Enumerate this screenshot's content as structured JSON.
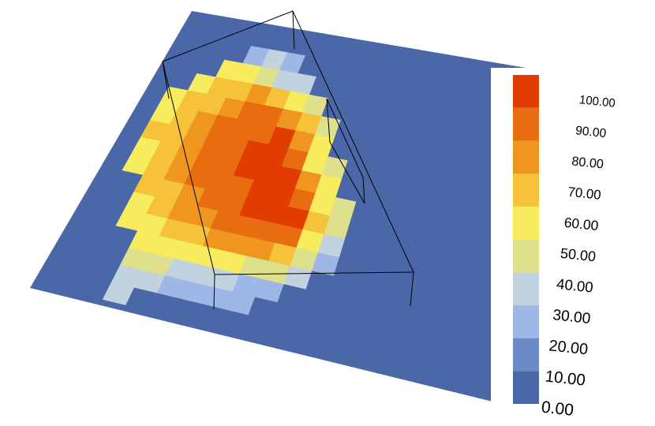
{
  "chart_data": {
    "type": "heatmap",
    "z": [
      [
        0,
        0,
        0,
        25,
        30,
        25,
        0,
        0,
        0,
        0,
        0,
        0
      ],
      [
        0,
        0,
        55,
        55,
        45,
        35,
        30,
        0,
        0,
        0,
        0,
        0
      ],
      [
        0,
        58,
        62,
        68,
        70,
        65,
        50,
        40,
        0,
        0,
        0,
        0
      ],
      [
        55,
        60,
        68,
        75,
        80,
        82,
        78,
        60,
        45,
        0,
        0,
        0
      ],
      [
        58,
        65,
        72,
        80,
        86,
        88,
        90,
        70,
        55,
        0,
        0,
        0
      ],
      [
        60,
        66,
        75,
        83,
        88,
        90,
        92,
        82,
        58,
        45,
        0,
        0
      ],
      [
        58,
        65,
        74,
        82,
        87,
        90,
        93,
        92,
        70,
        52,
        0,
        0
      ],
      [
        55,
        63,
        72,
        80,
        85,
        88,
        92,
        95,
        85,
        58,
        40,
        0
      ],
      [
        0,
        60,
        68,
        76,
        82,
        86,
        90,
        94,
        92,
        62,
        45,
        0
      ],
      [
        0,
        55,
        62,
        70,
        76,
        80,
        84,
        88,
        80,
        58,
        35,
        0
      ],
      [
        0,
        50,
        58,
        64,
        68,
        72,
        74,
        70,
        62,
        45,
        25,
        0
      ],
      [
        0,
        0,
        52,
        56,
        58,
        55,
        52,
        48,
        40,
        30,
        0,
        0
      ],
      [
        0,
        0,
        45,
        42,
        38,
        35,
        30,
        28,
        25,
        0,
        0,
        0
      ],
      [
        0,
        0,
        35,
        30,
        28,
        25,
        22,
        20,
        0,
        0,
        0,
        0
      ],
      [
        0,
        0,
        30,
        0,
        0,
        0,
        0,
        0,
        0,
        0,
        0,
        0
      ]
    ],
    "colorbar": {
      "colors": [
        "#4a67a8",
        "#6a8bc8",
        "#9db8e6",
        "#c2d2de",
        "#dfe08c",
        "#f7ec5e",
        "#f5c239",
        "#ef9620",
        "#e76d10",
        "#e13d00"
      ],
      "ticks": [
        {
          "value": 0,
          "label": "0.00"
        },
        {
          "value": 10,
          "label": "10.00"
        },
        {
          "value": 20,
          "label": "20.00"
        },
        {
          "value": 30,
          "label": "30.00"
        },
        {
          "value": 40,
          "label": "40.00"
        },
        {
          "value": 50,
          "label": "50.00"
        },
        {
          "value": 60,
          "label": "60.00"
        },
        {
          "value": 70,
          "label": "70.00"
        },
        {
          "value": 80,
          "label": "80.00"
        },
        {
          "value": 90,
          "label": "90.00"
        },
        {
          "value": 100,
          "label": "100.00"
        }
      ]
    }
  }
}
